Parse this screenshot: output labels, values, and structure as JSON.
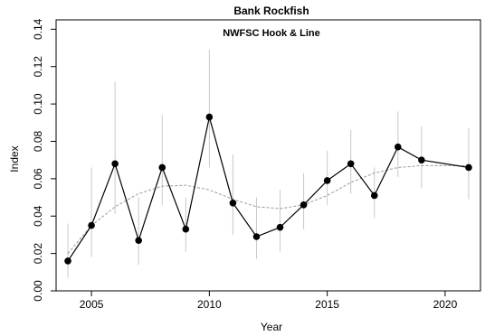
{
  "chart_data": {
    "type": "line",
    "title": "Bank Rockfish",
    "subtitle": "NWFSC Hook & Line",
    "xlabel": "Year",
    "ylabel": "Index",
    "xlim": [
      2003.5,
      2021.5
    ],
    "ylim": [
      0,
      0.145
    ],
    "x_ticks": [
      2005,
      2010,
      2015,
      2020
    ],
    "y_ticks": [
      0.0,
      0.02,
      0.04,
      0.06,
      0.08,
      0.1,
      0.12,
      0.14
    ],
    "y_tick_labels": [
      "0.00",
      "0.02",
      "0.04",
      "0.06",
      "0.08",
      "0.10",
      "0.12",
      "0.14"
    ],
    "grid": false,
    "colors": {
      "series": "#000000",
      "error_bars": "#c8c8c8",
      "smooth": "#999999"
    },
    "series": [
      {
        "x": [
          2004,
          2005,
          2006,
          2007,
          2008,
          2009,
          2010,
          2011,
          2012,
          2013,
          2014,
          2015,
          2016,
          2017,
          2018,
          2019,
          2021
        ],
        "values": [
          0.016,
          0.035,
          0.068,
          0.027,
          0.066,
          0.033,
          0.093,
          0.047,
          0.029,
          0.034,
          0.046,
          0.059,
          0.068,
          0.051,
          0.077,
          0.07,
          0.066
        ],
        "lower": [
          0.007,
          0.018,
          0.041,
          0.014,
          0.046,
          0.021,
          0.066,
          0.03,
          0.017,
          0.021,
          0.033,
          0.046,
          0.052,
          0.039,
          0.061,
          0.055,
          0.049
        ],
        "upper": [
          0.036,
          0.066,
          0.112,
          0.05,
          0.094,
          0.05,
          0.129,
          0.073,
          0.05,
          0.054,
          0.063,
          0.075,
          0.086,
          0.066,
          0.096,
          0.088,
          0.087
        ]
      }
    ],
    "smooth_line": {
      "x": [
        2004,
        2005,
        2006,
        2007,
        2008,
        2009,
        2010,
        2011,
        2012,
        2013,
        2014,
        2015,
        2016,
        2017,
        2018,
        2019,
        2021
      ],
      "values": [
        0.02,
        0.035,
        0.045,
        0.052,
        0.056,
        0.0565,
        0.054,
        0.049,
        0.045,
        0.044,
        0.046,
        0.051,
        0.058,
        0.063,
        0.066,
        0.067,
        0.067
      ]
    }
  }
}
